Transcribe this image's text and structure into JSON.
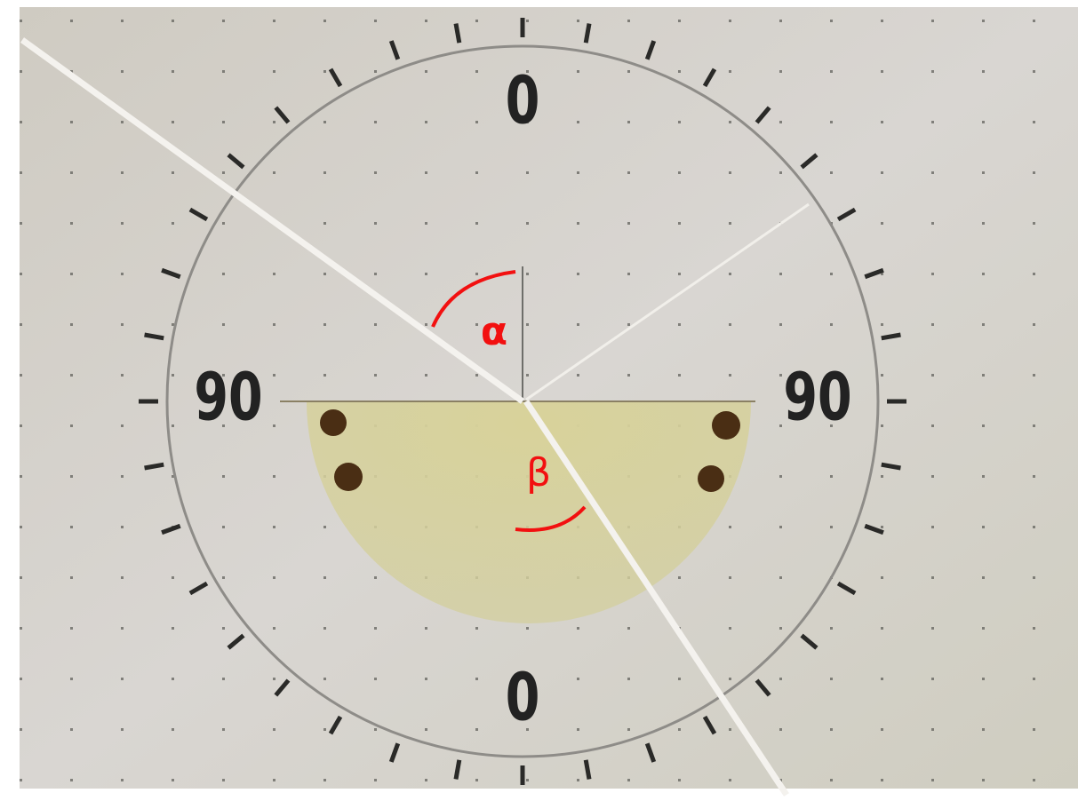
{
  "scale_labels": {
    "top": "0",
    "bottom": "0",
    "left": "90",
    "right": "90"
  },
  "angle_labels": {
    "incidence": "α",
    "refraction": "β"
  }
}
